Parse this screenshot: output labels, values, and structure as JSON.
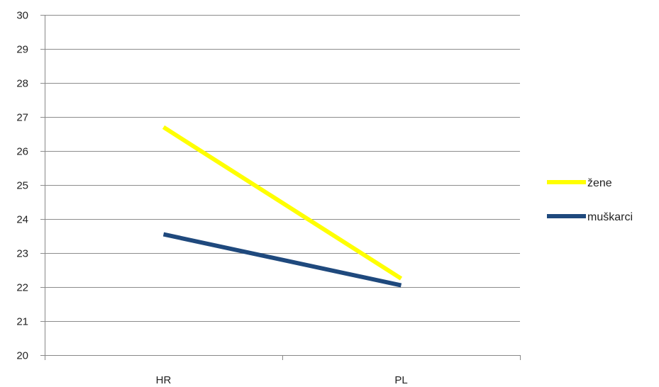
{
  "chart_data": {
    "type": "line",
    "categories": [
      "HR",
      "PL"
    ],
    "series": [
      {
        "name": "žene",
        "values": [
          26.7,
          22.25
        ],
        "color": "#ffff00"
      },
      {
        "name": "muškarci",
        "values": [
          23.55,
          22.05
        ],
        "color": "#1f497d"
      }
    ],
    "ylim": [
      20,
      30
    ],
    "yticks": [
      20,
      21,
      22,
      23,
      24,
      25,
      26,
      27,
      28,
      29,
      30
    ],
    "grid": true,
    "legend": "right"
  }
}
